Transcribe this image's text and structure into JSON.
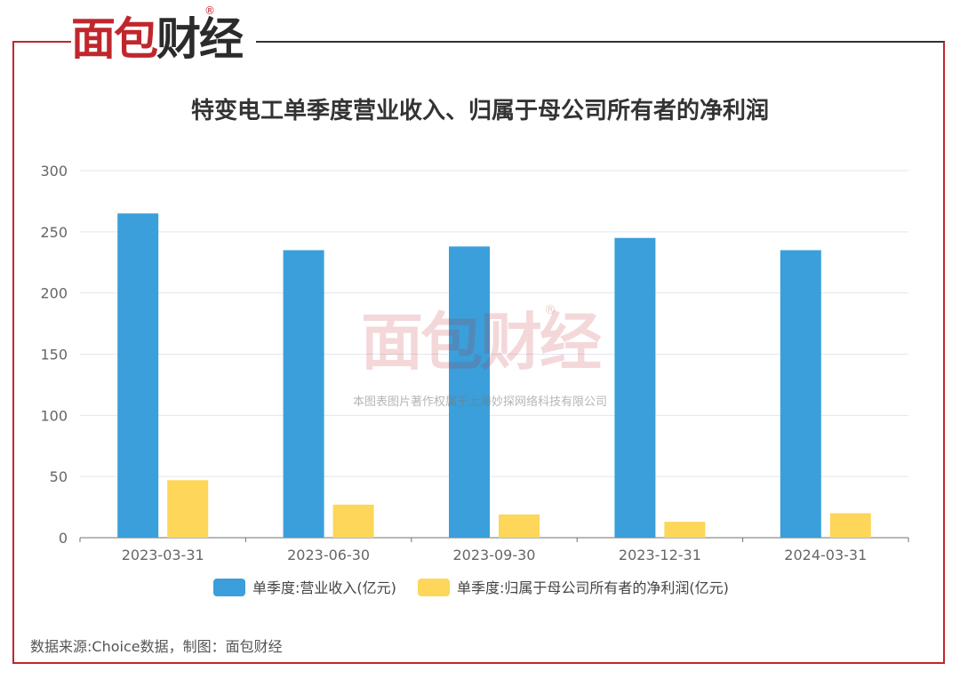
{
  "brand": {
    "logo_red": "面包",
    "logo_dark": "财经",
    "registered": "®",
    "red_color": "#c0272d",
    "dark_color": "#2b2b2b"
  },
  "watermark": {
    "logo": "面包财经",
    "registered": "®",
    "text": "本图表图片著作权属于上海妙探网络科技有限公司"
  },
  "source": "数据来源:Choice数据，制图：面包财经",
  "chart_data": {
    "type": "bar",
    "title": "特变电工单季度营业收入、归属于母公司所有者的净利润",
    "categories": [
      "2023-03-31",
      "2023-06-30",
      "2023-09-30",
      "2023-12-31",
      "2024-03-31"
    ],
    "series": [
      {
        "name": "单季度:营业收入(亿元)",
        "color": "#3a9fdb",
        "values": [
          265,
          235,
          238,
          245,
          235
        ]
      },
      {
        "name": "单季度:归属于母公司所有者的净利润(亿元)",
        "color": "#fdd65a",
        "values": [
          47,
          27,
          19,
          13,
          20
        ]
      }
    ],
    "y_ticks": [
      "0",
      "50",
      "100",
      "150",
      "200",
      "250",
      "300"
    ],
    "ylim": [
      0,
      300
    ],
    "grid": true,
    "legend_position": "bottom"
  }
}
